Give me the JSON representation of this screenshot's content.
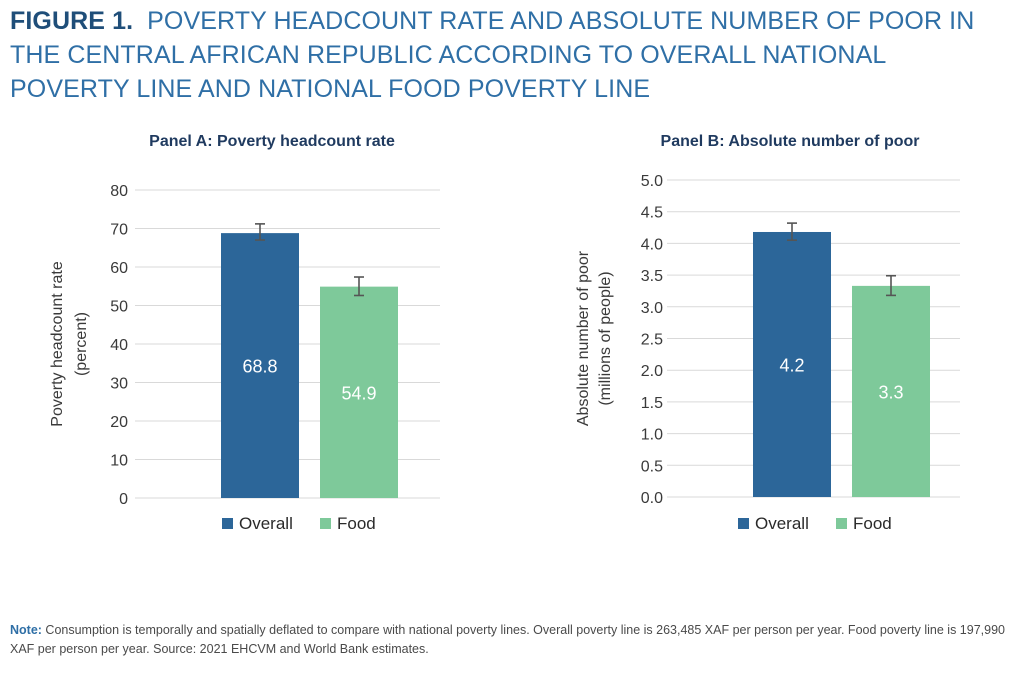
{
  "figure": {
    "label": "FIGURE 1.",
    "title": "POVERTY HEADCOUNT RATE AND ABSOLUTE NUMBER OF POOR IN THE CENTRAL AFRICAN REPUBLIC ACCORDING TO OVERALL NATIONAL POVERTY LINE AND NATIONAL FOOD POVERTY LINE"
  },
  "colors": {
    "overall": "#2c6699",
    "food": "#7ec99a",
    "grid": "#d9d9d9",
    "error": "#555555"
  },
  "chart_data": [
    {
      "type": "bar",
      "title": "Panel A: Poverty headcount rate",
      "ylabel": [
        "Poverty headcount rate",
        "(percent)"
      ],
      "xlabel": "",
      "ylim": [
        0,
        80
      ],
      "yticks": [
        0,
        10,
        20,
        30,
        40,
        50,
        60,
        70,
        80
      ],
      "ytick_labels": [
        "0",
        "10",
        "20",
        "30",
        "40",
        "50",
        "60",
        "70",
        "80"
      ],
      "grid": true,
      "legend": "bottom-center",
      "series": [
        {
          "name": "Overall",
          "value": 68.8,
          "label": "68.8",
          "error_low": 67.0,
          "error_high": 71.2
        },
        {
          "name": "Food",
          "value": 54.9,
          "label": "54.9",
          "error_low": 52.6,
          "error_high": 57.4
        }
      ]
    },
    {
      "type": "bar",
      "title": "Panel B: Absolute number of poor",
      "ylabel": [
        "Absolute number of poor",
        "(millions of people)"
      ],
      "xlabel": "",
      "ylim": [
        0,
        5
      ],
      "yticks": [
        0,
        0.5,
        1.0,
        1.5,
        2.0,
        2.5,
        3.0,
        3.5,
        4.0,
        4.5,
        5.0
      ],
      "ytick_labels": [
        "0.0",
        "0.5",
        "1.0",
        "1.5",
        "2.0",
        "2.5",
        "3.0",
        "3.5",
        "4.0",
        "4.5",
        "5.0"
      ],
      "grid": true,
      "legend": "bottom-center",
      "series": [
        {
          "name": "Overall",
          "value": 4.18,
          "label": "4.2",
          "error_low": 4.05,
          "error_high": 4.32
        },
        {
          "name": "Food",
          "value": 3.33,
          "label": "3.3",
          "error_low": 3.18,
          "error_high": 3.49
        }
      ]
    }
  ],
  "note": {
    "label": "Note:",
    "text": " Consumption is temporally and spatially deflated to compare with national poverty lines. Overall poverty line is 263,485 XAF per person per year. Food poverty line is 197,990 XAF per person per year. Source: 2021 EHCVM and World Bank estimates."
  }
}
